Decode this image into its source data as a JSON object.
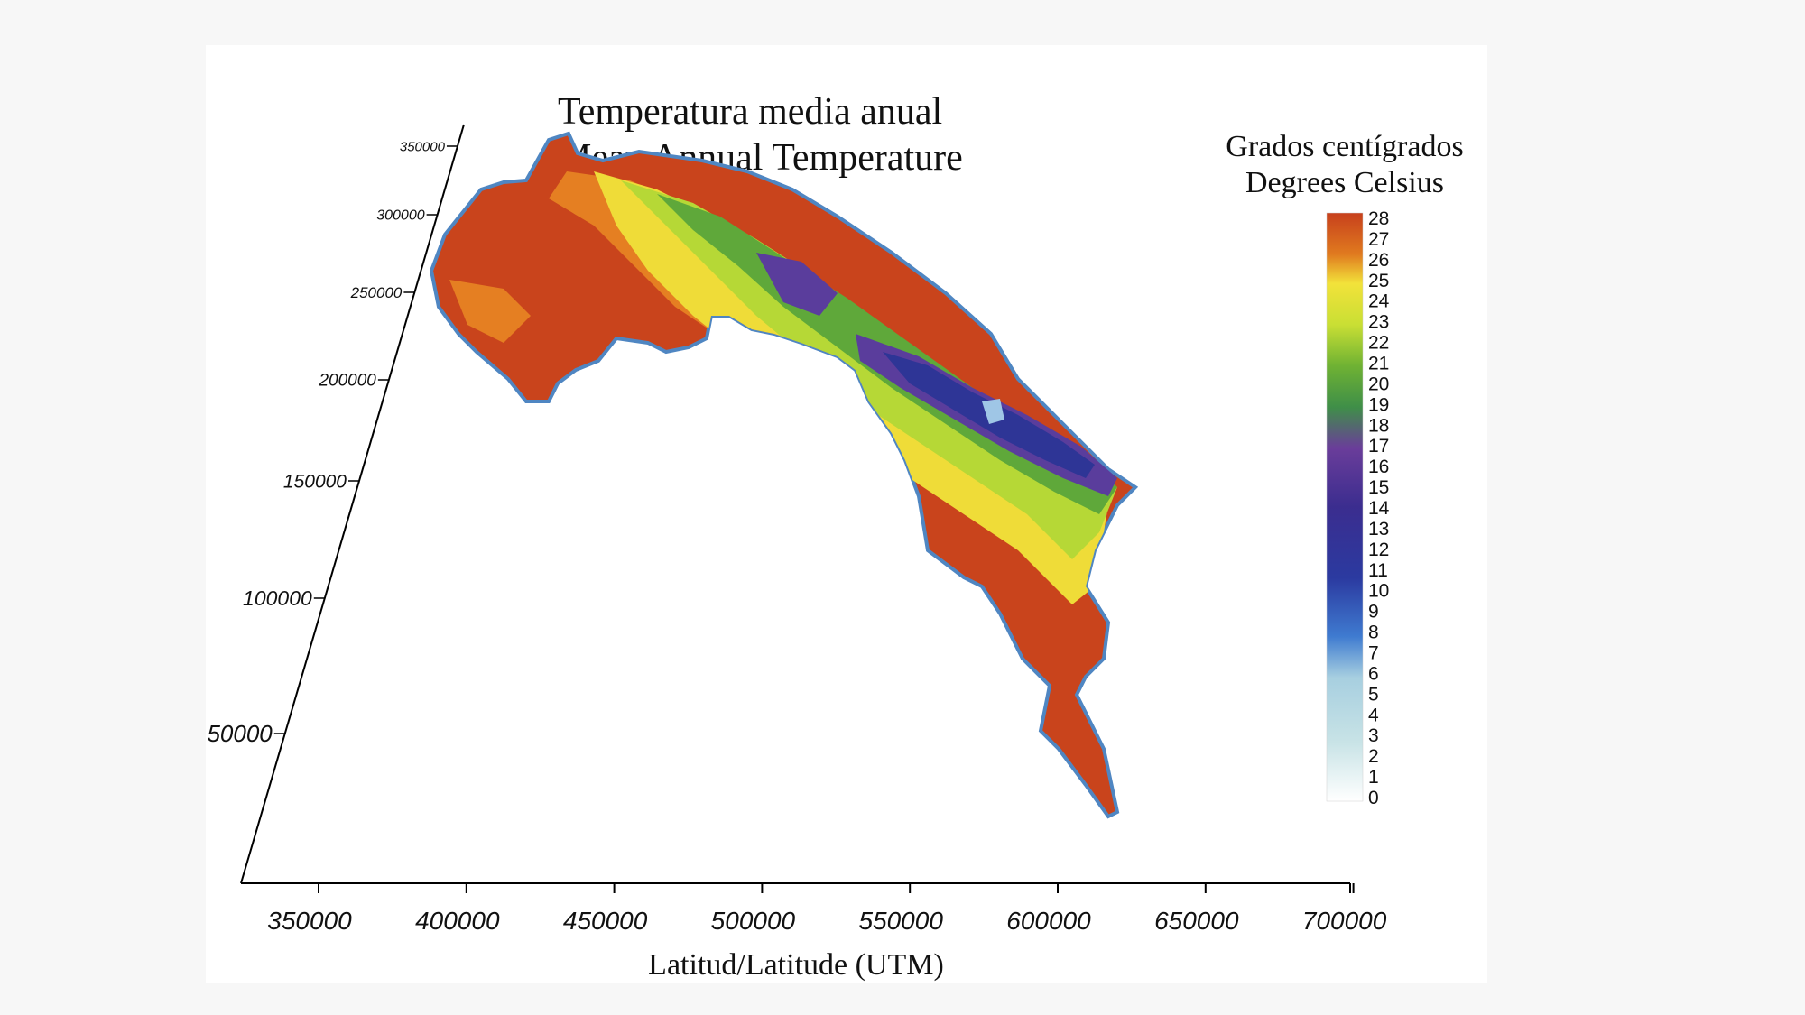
{
  "title": {
    "line1": "Temperatura  media anual",
    "line2": "Mean Annual Temperature"
  },
  "legend": {
    "title_line1": "Grados  centígrados",
    "title_line2": "Degrees Celsius",
    "ticks": [
      "28",
      "27",
      "26",
      "25",
      "24",
      "23",
      "22",
      "21",
      "20",
      "19",
      "18",
      "17",
      "16",
      "15",
      "14",
      "13",
      "12",
      "11",
      "10",
      "9",
      "8",
      "7",
      "6",
      "5",
      "4",
      "3",
      "2",
      "1",
      "0"
    ],
    "colors": {
      "c28": "#c7401c",
      "c26": "#e07a1f",
      "c25": "#f2e23a",
      "c23": "#c9df34",
      "c21": "#6fb233",
      "c19": "#3f8f48",
      "c17": "#6a3d9a",
      "c14": "#3b2d8f",
      "c11": "#2b3aa0",
      "c8": "#3f7bd0",
      "c6": "#a7cfe0",
      "c3": "#c8e3e6",
      "c0": "#ffffff"
    }
  },
  "axes": {
    "x_label": "Latitud/Latitude (UTM)",
    "x_ticks": [
      "350000",
      "400000",
      "450000",
      "500000",
      "550000",
      "600000",
      "650000",
      "700000"
    ],
    "y_ticks": [
      "350000",
      "300000",
      "250000",
      "200000",
      "150000",
      "100000",
      "50000"
    ]
  },
  "map": {
    "region": "Costa Rica",
    "colors": {
      "caribbean_lowland": "#dfa030",
      "hot": "#c9441c",
      "warm": "#e57f22",
      "mild": "#efdc38",
      "temperate": "#b6d836",
      "cool": "#5fa83a",
      "cold": "#5a3d9c",
      "very_cold": "#2e3596",
      "peak": "#9fc6e6",
      "coast": "#4f86c2"
    }
  }
}
